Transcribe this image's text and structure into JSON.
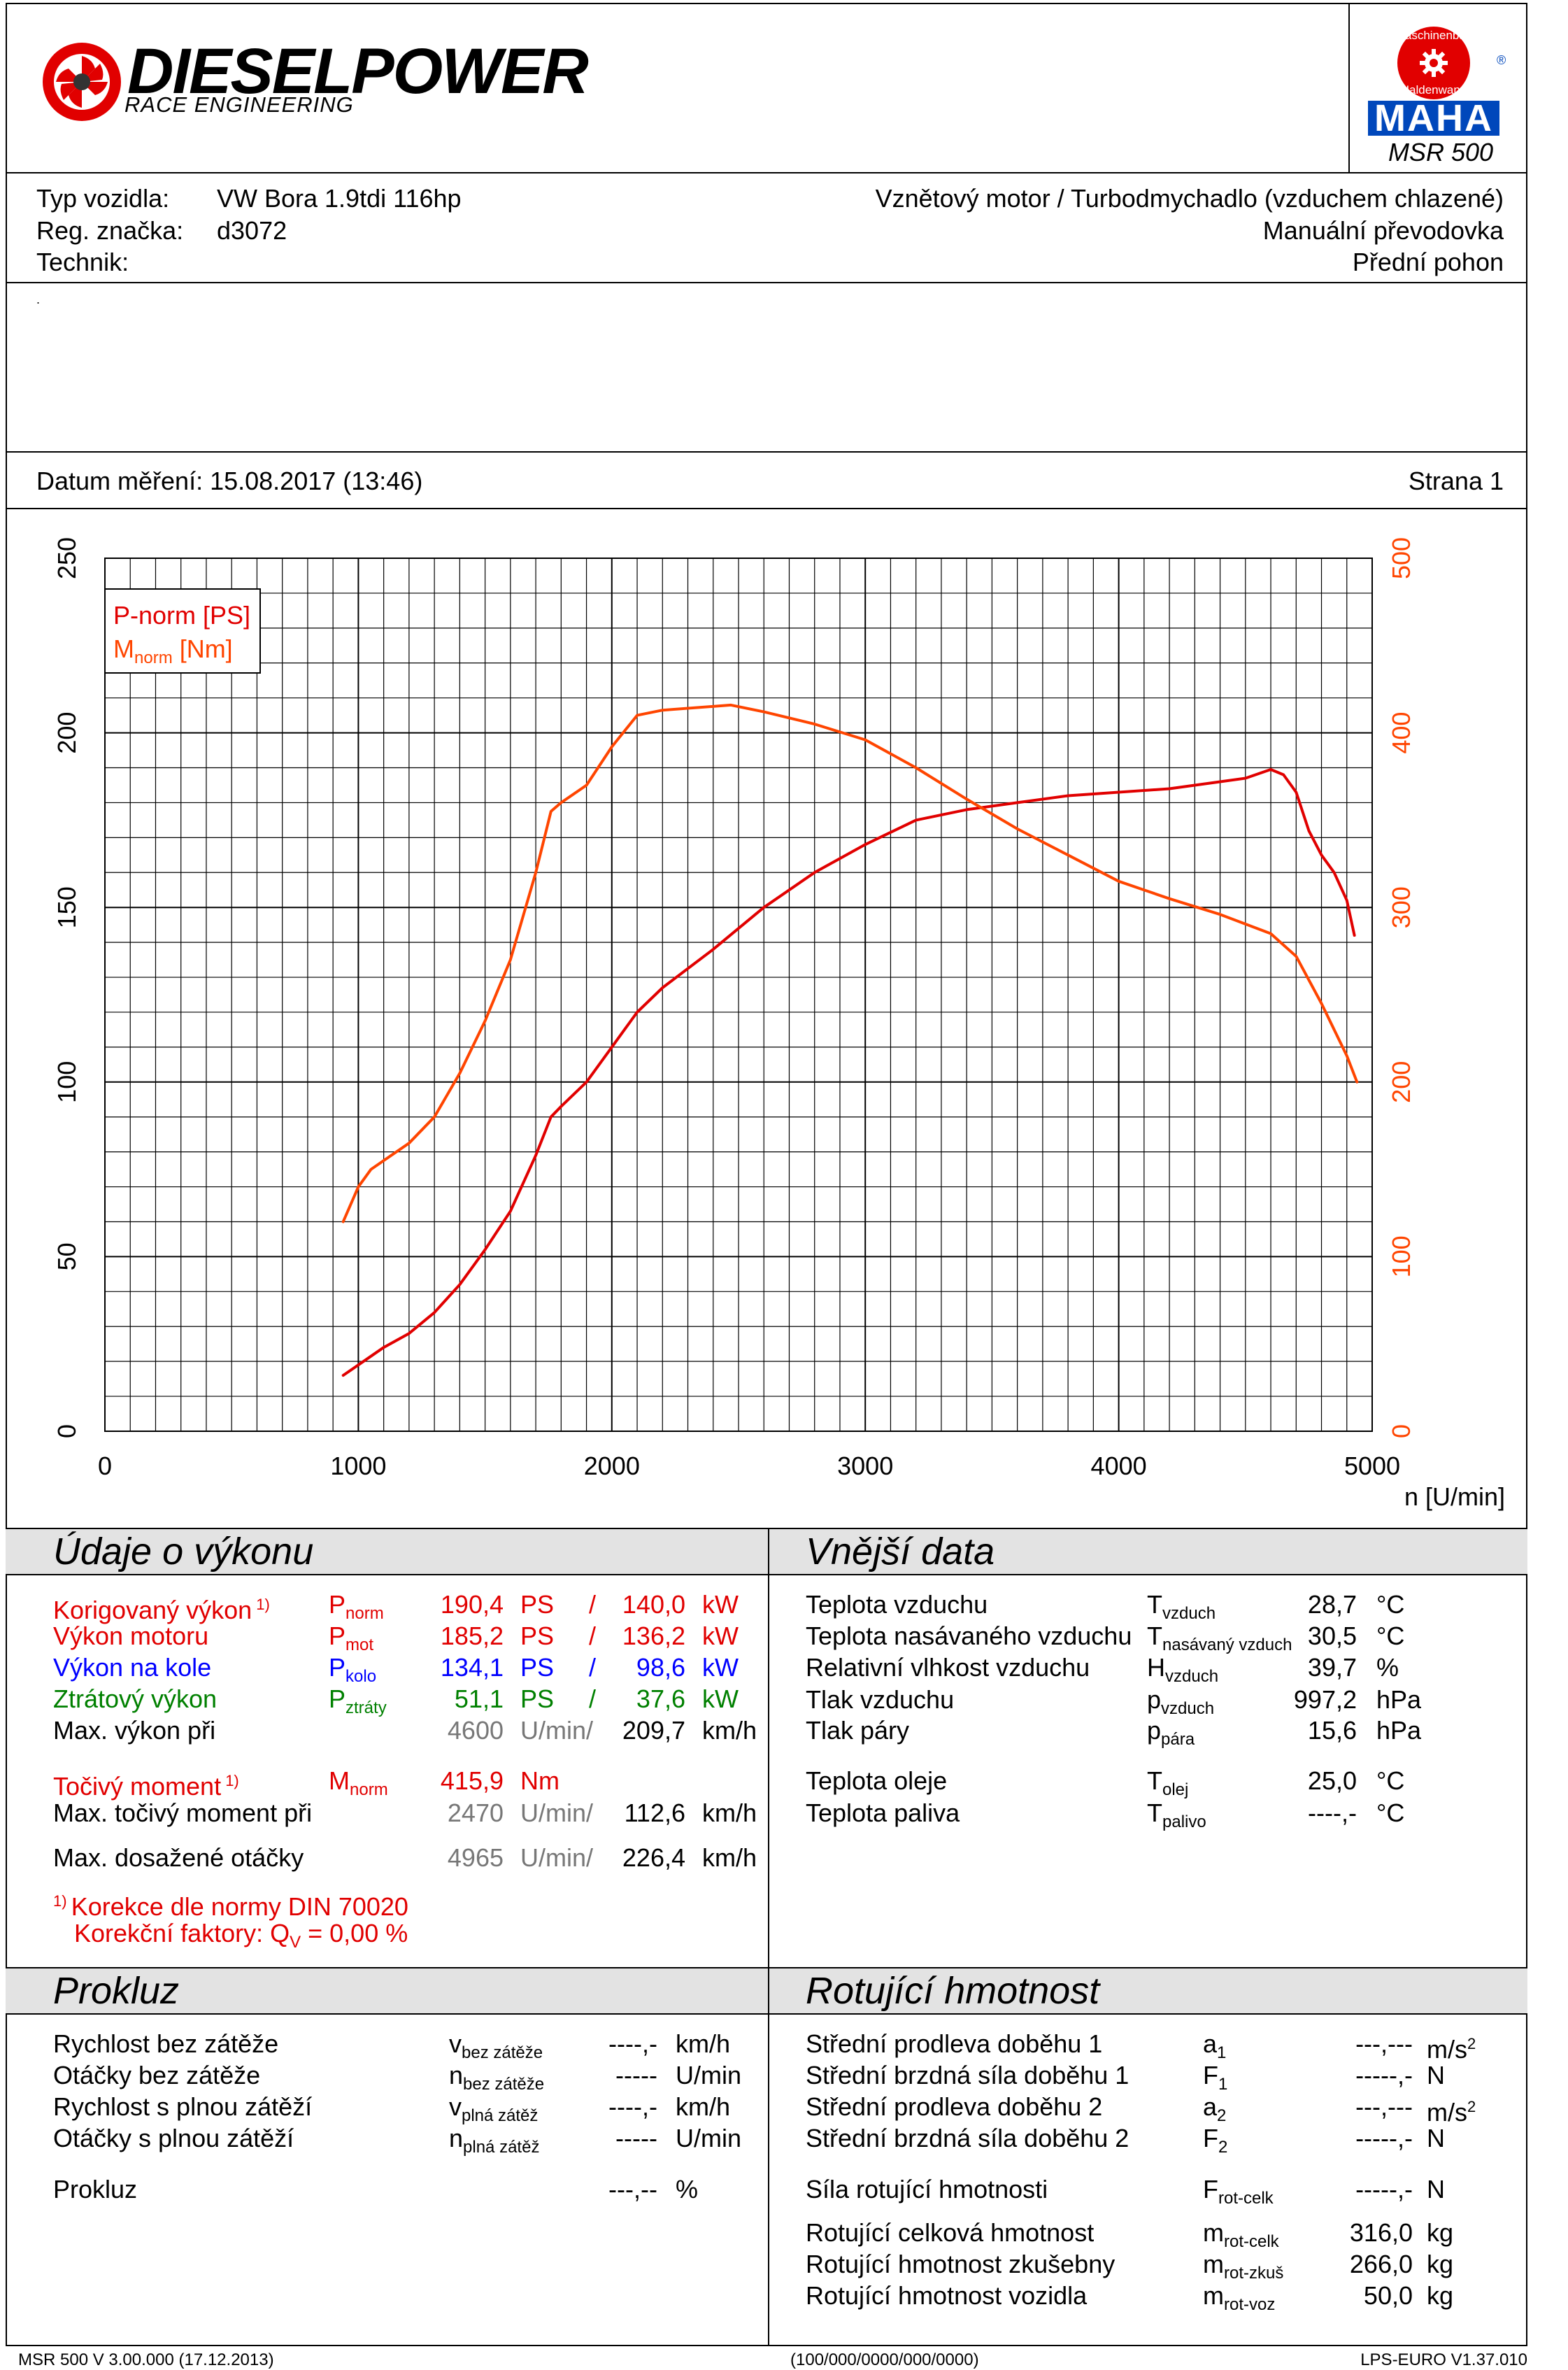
{
  "brand": {
    "name": "DIESELPOWER",
    "subtitle": "RACE ENGINEERING"
  },
  "device": {
    "logo_top": "Maschinenbau",
    "logo_bottom": "Haldenwang",
    "logo_word": "MAHA",
    "registered": "®",
    "model": "MSR 500"
  },
  "vehicle": {
    "type_label": "Typ vozidla:",
    "type_value": "VW Bora 1.9tdi 116hp",
    "reg_label": "Reg. značka:",
    "reg_value": "d3072",
    "tech_label": "Technik:",
    "engine": "Vznětový motor / Turbodmychadlo (vzduchem chlazené)",
    "gearbox": "Manuální převodovka",
    "drive": "Přední pohon",
    "dot": "."
  },
  "measurement": {
    "date": "Datum měření: 15.08.2017 (13:46)",
    "page": "Strana 1"
  },
  "chart_data": {
    "type": "line",
    "xlabel": "n [U/min]",
    "xlim": [
      0,
      5000
    ],
    "x_ticks": [
      "0",
      "1000",
      "2000",
      "3000",
      "4000",
      "5000"
    ],
    "ylim_left": [
      0,
      250
    ],
    "y_ticks_left": [
      "0",
      "50",
      "100",
      "150",
      "200",
      "250"
    ],
    "ylim_right": [
      0,
      500
    ],
    "y_ticks_right": [
      "0",
      "100",
      "200",
      "300",
      "400",
      "500"
    ],
    "grid": true,
    "legend_position": "top-left",
    "series": [
      {
        "name": "P-norm [PS]",
        "axis": "left",
        "color": "#e10000",
        "x": [
          940,
          1000,
          1100,
          1200,
          1300,
          1400,
          1500,
          1600,
          1700,
          1760,
          1800,
          1900,
          2000,
          2100,
          2200,
          2400,
          2600,
          2800,
          3000,
          3200,
          3400,
          3600,
          3800,
          4000,
          4200,
          4400,
          4500,
          4600,
          4650,
          4700,
          4750,
          4800,
          4850,
          4900,
          4930
        ],
        "values": [
          16,
          19,
          24,
          28,
          34,
          42,
          52,
          63,
          79,
          90,
          93,
          100,
          110,
          120,
          127,
          138,
          150,
          160,
          168,
          175,
          178,
          180,
          182,
          183,
          184,
          186,
          187,
          189.5,
          188,
          183,
          172,
          165,
          160,
          152,
          142
        ]
      },
      {
        "name": "M-norm [Nm]",
        "axis": "right",
        "color": "#ff4500",
        "x": [
          940,
          1000,
          1050,
          1100,
          1200,
          1300,
          1400,
          1500,
          1600,
          1700,
          1760,
          1800,
          1900,
          2000,
          2100,
          2200,
          2470,
          2600,
          2800,
          3000,
          3200,
          3400,
          3600,
          3800,
          4000,
          4200,
          4400,
          4600,
          4700,
          4800,
          4850,
          4900,
          4940
        ],
        "values": [
          120,
          140,
          150,
          155,
          165,
          180,
          205,
          235,
          270,
          320,
          355,
          360,
          370,
          392,
          410,
          413,
          415.9,
          412,
          405,
          396,
          380,
          362,
          345,
          330,
          315,
          305,
          296,
          285,
          272,
          245,
          230,
          215,
          200
        ]
      }
    ],
    "legend": {
      "p_label": "P-norm [PS]",
      "m_label_main": "M",
      "m_label_sub": "norm",
      "m_label_unit": " [Nm]"
    }
  },
  "performance": {
    "title": "Údaje o výkonu",
    "rows": [
      {
        "label": "Korigovaný výkon",
        "note": "1)",
        "sym": "P",
        "sub": "norm",
        "ps": "190,4",
        "u1": "PS",
        "sep": "/",
        "kw": "140,0",
        "u2": "kW",
        "color": "red"
      },
      {
        "label": "Výkon motoru",
        "note": "",
        "sym": "P",
        "sub": "mot",
        "ps": "185,2",
        "u1": "PS",
        "sep": "/",
        "kw": "136,2",
        "u2": "kW",
        "color": "red"
      },
      {
        "label": "Výkon na kole",
        "note": "",
        "sym": "P",
        "sub": "kolo",
        "ps": "134,1",
        "u1": "PS",
        "sep": "/",
        "kw": "98,6",
        "u2": "kW",
        "color": "blue"
      },
      {
        "label": "Ztrátový výkon",
        "note": "",
        "sym": "P",
        "sub": "ztráty",
        "ps": "51,1",
        "u1": "PS",
        "sep": "/",
        "kw": "37,6",
        "u2": "kW",
        "color": "green"
      }
    ],
    "max_power": {
      "label": "Max. výkon při",
      "rpm": "4600",
      "u1": "U/min/",
      "speed": "209,7",
      "u2": "km/h"
    },
    "torque": {
      "label": "Točivý moment",
      "note": "1)",
      "sym": "M",
      "sub": "norm",
      "value": "415,9",
      "unit": "Nm"
    },
    "max_torque": {
      "label": "Max. točivý moment při",
      "rpm": "2470",
      "u1": "U/min/",
      "speed": "112,6",
      "u2": "km/h"
    },
    "max_rpm": {
      "label": "Max. dosažené otáčky",
      "rpm": "4965",
      "u1": "U/min/",
      "speed": "226,4",
      "u2": "km/h"
    },
    "footnote_num": "1)",
    "footnote": "Korekce dle normy DIN 70020",
    "factor_label": "Korekční faktory: Q",
    "factor_sub": "V",
    "factor_value": "=   0,00 %"
  },
  "external": {
    "title": "Vnější data",
    "rows": [
      {
        "label": "Teplota vzduchu",
        "sym": "T",
        "sub": "vzduch",
        "value": "28,7",
        "unit": "°C"
      },
      {
        "label": "Teplota nasávaného vzduchu",
        "sym": "T",
        "sub": "nasávaný vzduch",
        "value": "30,5",
        "unit": "°C"
      },
      {
        "label": "Relativní vlhkost vzduchu",
        "sym": "H",
        "sub": "vzduch",
        "value": "39,7",
        "unit": "%"
      },
      {
        "label": "Tlak vzduchu",
        "sym": "p",
        "sub": "vzduch",
        "value": "997,2",
        "unit": "hPa"
      },
      {
        "label": "Tlak páry",
        "sym": "p",
        "sub": "pára",
        "value": "15,6",
        "unit": "hPa"
      },
      {
        "label": "Teplota oleje",
        "sym": "T",
        "sub": "olej",
        "value": "25,0",
        "unit": "°C"
      },
      {
        "label": "Teplota paliva",
        "sym": "T",
        "sub": "palivo",
        "value": "----,-",
        "unit": "°C"
      }
    ]
  },
  "slip": {
    "title": "Prokluz",
    "rows": [
      {
        "label": "Rychlost bez zátěže",
        "sym": "v",
        "sub": "bez zátěže",
        "value": "----,-",
        "unit": "km/h"
      },
      {
        "label": "Otáčky bez zátěže",
        "sym": "n",
        "sub": "bez zátěže",
        "value": "-----",
        "unit": "U/min"
      },
      {
        "label": "Rychlost s plnou zátěží",
        "sym": "v",
        "sub": "plná zátěž",
        "value": "----,-",
        "unit": "km/h"
      },
      {
        "label": "Otáčky s plnou zátěží",
        "sym": "n",
        "sub": "plná zátěž",
        "value": "-----",
        "unit": "U/min"
      }
    ],
    "total_label": "Prokluz",
    "total_value": "---,--",
    "total_unit": "%"
  },
  "rotating": {
    "title": "Rotující hmotnost",
    "rows": [
      {
        "label": "Střední prodleva doběhu 1",
        "sym": "a",
        "sub": "1",
        "value": "---,---",
        "unit": "m/s",
        "unit_sup": "2"
      },
      {
        "label": "Střední brzdná síla doběhu 1",
        "sym": "F",
        "sub": "1",
        "value": "-----,-",
        "unit": "N",
        "unit_sup": ""
      },
      {
        "label": "Střední prodleva doběhu 2",
        "sym": "a",
        "sub": "2",
        "value": "---,---",
        "unit": "m/s",
        "unit_sup": "2"
      },
      {
        "label": "Střední brzdná síla doběhu 2",
        "sym": "F",
        "sub": "2",
        "value": "-----,-",
        "unit": "N",
        "unit_sup": ""
      }
    ],
    "force": {
      "label": "Síla rotující hmotnosti",
      "sym": "F",
      "sub": "rot-celk",
      "value": "-----,-",
      "unit": "N"
    },
    "mass_rows": [
      {
        "label": "Rotující celková hmotnost",
        "sym": "m",
        "sub": "rot-celk",
        "value": "316,0",
        "unit": "kg"
      },
      {
        "label": "Rotující hmotnost zkušebny",
        "sym": "m",
        "sub": "rot-zkuš",
        "value": "266,0",
        "unit": "kg"
      },
      {
        "label": "Rotující hmotnost vozidla",
        "sym": "m",
        "sub": "rot-voz",
        "value": "50,0",
        "unit": "kg"
      }
    ]
  },
  "footer": {
    "left": "MSR 500 V 3.00.000 (17.12.2013)",
    "center": "(100/000/0000/000/0000)",
    "right": "LPS-EURO V1.37.010"
  }
}
